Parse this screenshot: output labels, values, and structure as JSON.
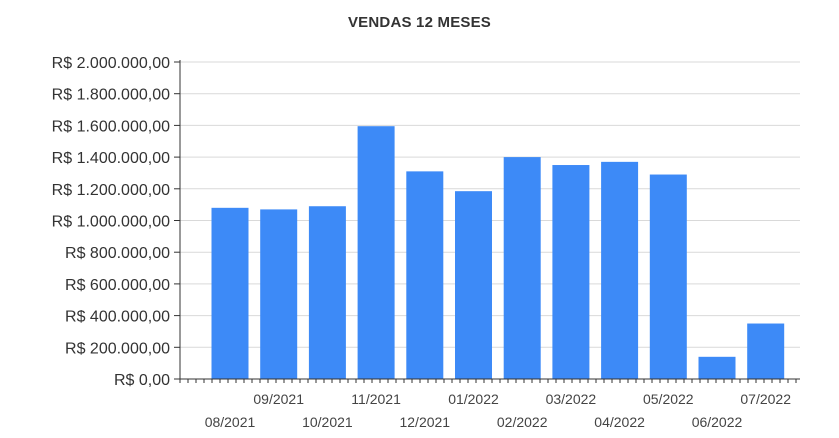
{
  "chart_data": {
    "type": "bar",
    "title": "VENDAS 12 MESES",
    "xlabel": "",
    "ylabel": "",
    "categories": [
      "08/2021",
      "09/2021",
      "10/2021",
      "11/2021",
      "12/2021",
      "01/2022",
      "02/2022",
      "03/2022",
      "04/2022",
      "05/2022",
      "06/2022",
      "07/2022"
    ],
    "values": [
      1080000,
      1070000,
      1090000,
      1595000,
      1310000,
      1185000,
      1400000,
      1350000,
      1370000,
      1290000,
      140000,
      350000
    ],
    "ylim": [
      0,
      2000000
    ],
    "yticks": [
      0,
      200000,
      400000,
      600000,
      800000,
      1000000,
      1200000,
      1400000,
      1600000,
      1800000,
      2000000
    ],
    "ytick_labels": [
      "R$ 0,00",
      "R$ 200.000,00",
      "R$ 400.000,00",
      "R$ 600.000,00",
      "R$ 800.000,00",
      "R$ 1.000.000,00",
      "R$ 1.200.000,00",
      "R$ 1.400.000,00",
      "R$ 1.600.000,00",
      "R$ 1.800.000,00",
      "R$ 2.000.000,00"
    ],
    "grid": true,
    "legend": "none",
    "colors": {
      "bar": "#3d8af7",
      "grid": "#d9d9d9",
      "axis": "#333333",
      "text": "#333333"
    }
  }
}
